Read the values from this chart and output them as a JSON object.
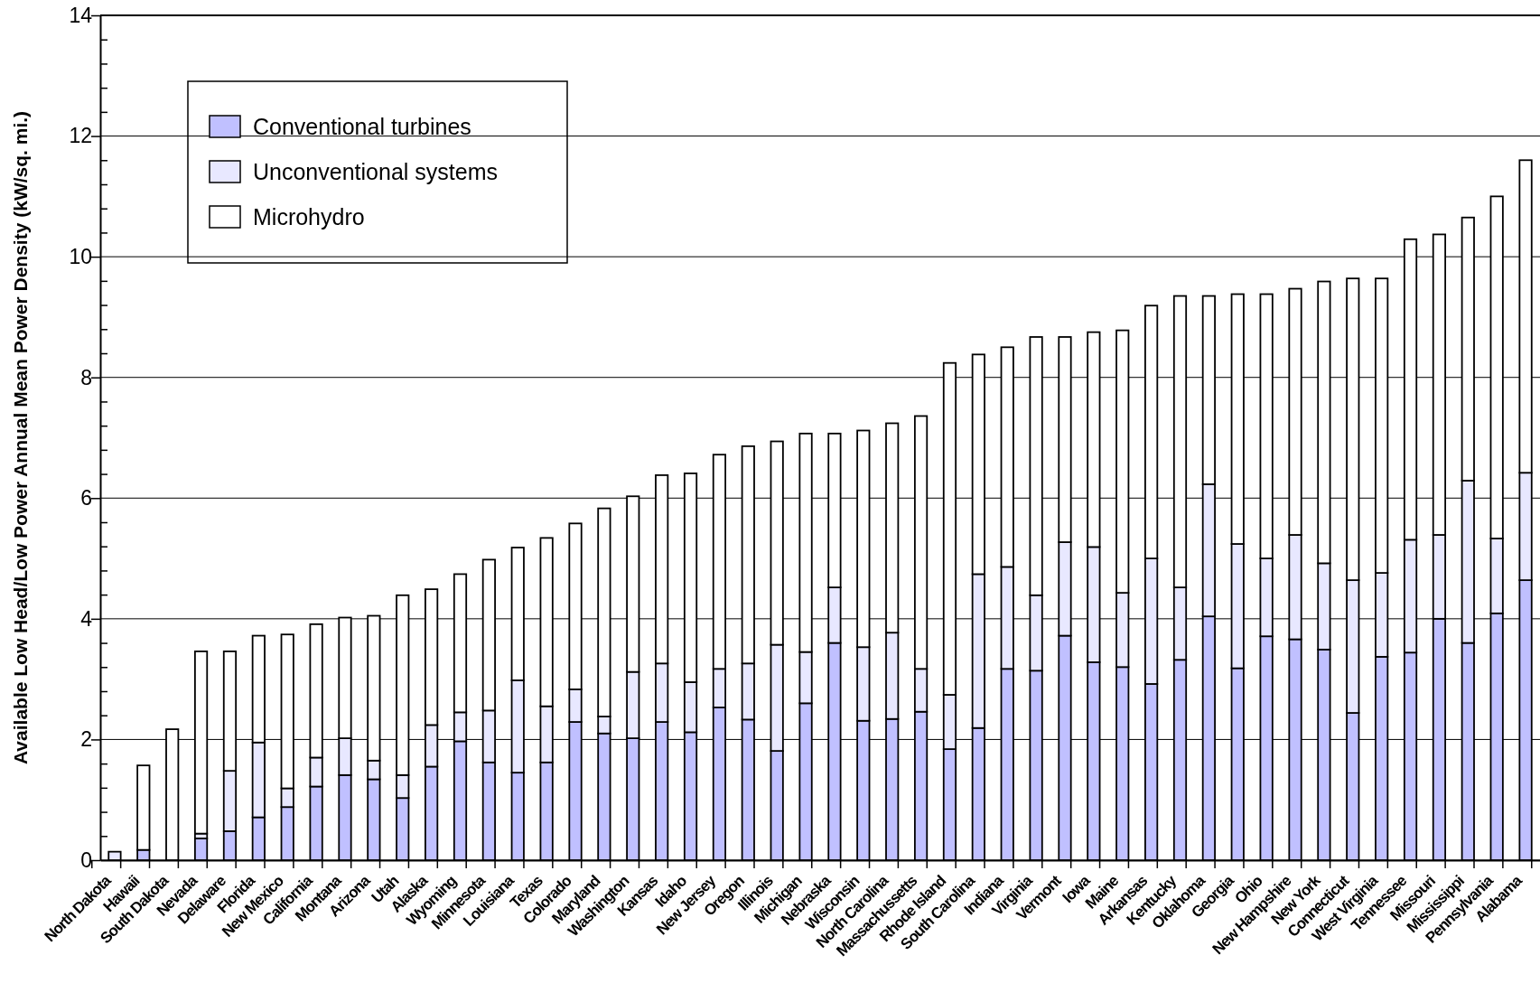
{
  "chart_data": {
    "type": "bar",
    "stacked": true,
    "ylabel": "Available Low Head/Low Power Annual Mean Power Density (kW/sq. mi.)",
    "categories": [
      "North Dakota",
      "Hawaii",
      "South Dakota",
      "Nevada",
      "Delaware",
      "Florida",
      "New Mexico",
      "California",
      "Montana",
      "Arizona",
      "Utah",
      "Alaska",
      "Wyoming",
      "Minnesota",
      "Louisiana",
      "Texas",
      "Colorado",
      "Maryland",
      "Washington",
      "Kansas",
      "Idaho",
      "New Jersey",
      "Oregon",
      "Illinois",
      "Michigan",
      "Nebraska",
      "Wisconsin",
      "North Carolina",
      "Massachussetts",
      "Rhode Island",
      "South Carolina",
      "Indiana",
      "Virginia",
      "Vermont",
      "Iowa",
      "Maine",
      "Arkansas",
      "Kentucky",
      "Oklahoma",
      "Georgia",
      "Ohio",
      "New Hampshire",
      "New York",
      "Connecticut",
      "West Virginia",
      "Tennessee",
      "Missouri",
      "Mississippi",
      "Pennsylvania",
      "Alabama"
    ],
    "series": [
      {
        "name": "Conventional turbines",
        "color": "#c0c0ff",
        "values": [
          0,
          0.17,
          0,
          0.36,
          0.48,
          0.71,
          0.88,
          1.22,
          1.41,
          1.34,
          1.03,
          1.55,
          1.97,
          1.62,
          1.45,
          1.62,
          2.29,
          2.1,
          2.02,
          2.29,
          2.12,
          2.53,
          2.33,
          1.81,
          2.6,
          3.6,
          2.31,
          2.34,
          2.46,
          1.84,
          2.19,
          3.17,
          3.14,
          3.72,
          3.28,
          3.2,
          2.92,
          3.32,
          4.04,
          3.18,
          3.71,
          3.66,
          3.49,
          2.44,
          3.37,
          3.44,
          4.0,
          3.6,
          4.09,
          4.64
        ]
      },
      {
        "name": "Unconventional systems",
        "color": "#e8e8ff",
        "values": [
          0.14,
          0,
          0,
          0.08,
          1.0,
          1.24,
          0.31,
          0.48,
          0.61,
          0.31,
          0.38,
          0.69,
          0.48,
          0.86,
          1.53,
          0.93,
          0.54,
          0.28,
          1.1,
          0.97,
          0.83,
          0.64,
          0.93,
          1.76,
          0.85,
          0.92,
          1.22,
          1.43,
          0.71,
          0.9,
          2.55,
          1.69,
          1.25,
          1.55,
          1.91,
          1.23,
          2.08,
          1.2,
          2.19,
          2.06,
          1.29,
          1.73,
          1.43,
          2.2,
          1.39,
          1.87,
          1.39,
          2.69,
          1.24,
          1.78
        ]
      },
      {
        "name": "Microhydro",
        "color": "#ffffff",
        "values": [
          0,
          1.4,
          2.17,
          3.02,
          1.98,
          1.77,
          2.55,
          2.21,
          2.0,
          2.4,
          2.98,
          2.25,
          2.29,
          2.5,
          2.2,
          2.79,
          2.75,
          3.45,
          2.91,
          3.12,
          3.46,
          3.55,
          3.6,
          3.37,
          3.62,
          2.55,
          3.59,
          3.47,
          4.19,
          5.5,
          3.64,
          3.64,
          4.28,
          3.4,
          3.56,
          4.35,
          4.19,
          4.83,
          3.12,
          4.14,
          4.38,
          4.08,
          4.67,
          5.0,
          4.88,
          4.98,
          4.98,
          4.36,
          5.67,
          5.18
        ]
      }
    ],
    "ylim": [
      0,
      14
    ],
    "yticks": [
      0,
      {
        "value": 0.4,
        "label": null
      },
      {
        "value": 0.8,
        "label": null
      },
      {
        "value": 1.2,
        "label": null
      },
      {
        "value": 1.6,
        "label": null
      },
      2,
      {
        "value": 2.4,
        "label": null
      },
      {
        "value": 2.8,
        "label": null
      },
      {
        "value": 3.2,
        "label": null
      },
      {
        "value": 3.6,
        "label": null
      },
      4,
      {
        "value": 4.4,
        "label": null
      },
      {
        "value": 4.8,
        "label": null
      },
      {
        "value": 5.2,
        "label": null
      },
      {
        "value": 5.6,
        "label": null
      },
      6,
      {
        "value": 6.4,
        "label": null
      },
      {
        "value": 6.8,
        "label": null
      },
      {
        "value": 7.2,
        "label": null
      },
      {
        "value": 7.6,
        "label": null
      },
      8,
      {
        "value": 8.4,
        "label": null
      },
      {
        "value": 8.8,
        "label": null
      },
      {
        "value": 9.2,
        "label": null
      },
      {
        "value": 9.6,
        "label": null
      },
      10,
      {
        "value": 10.4,
        "label": null
      },
      {
        "value": 10.8,
        "label": null
      },
      {
        "value": 11.2,
        "label": null
      },
      {
        "value": 11.6,
        "label": null
      },
      12,
      {
        "value": 12.4,
        "label": null
      },
      {
        "value": 12.8,
        "label": null
      },
      {
        "value": 13.2,
        "label": null
      },
      {
        "value": 13.6,
        "label": null
      },
      14
    ],
    "grid": "y",
    "legend": "top left"
  }
}
